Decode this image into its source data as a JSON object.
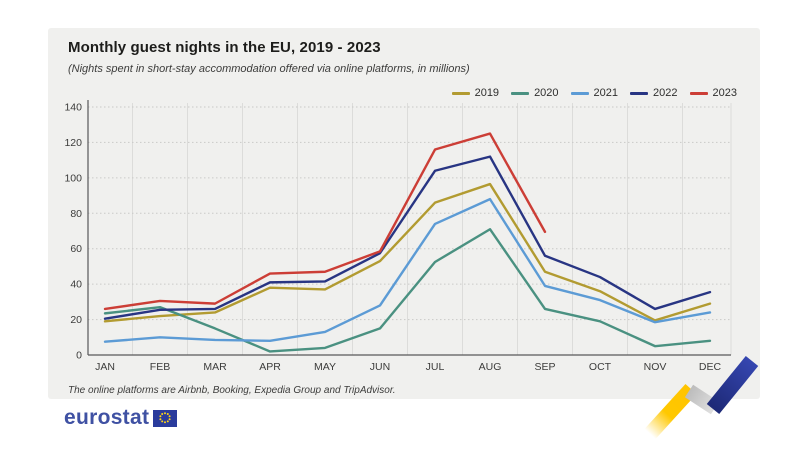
{
  "header": {
    "title": "Monthly guest nights in the EU, 2019 - 2023",
    "subtitle": "(Nights spent in short-stay accommodation offered via online platforms, in millions)"
  },
  "footnote": "The online platforms are Airbnb, Booking, Expedia Group and TripAdvisor.",
  "logo": {
    "text": "eurostat"
  },
  "colors": {
    "card_background": "#f0f0ee",
    "axis": "#58585a",
    "grid_horizontal": "#c9c9c7",
    "grid_vertical": "#dcdcda",
    "tick_text": "#3c3c3b",
    "logo_blue": "#3f51a3",
    "flag_blue": "#2a3b9c",
    "flag_star_yellow": "#ffd617",
    "deco_yellow": "#ffc800",
    "deco_gray": "#c6c6c6",
    "deco_blue_dark": "#1e2a78",
    "deco_blue_light": "#3546b0"
  },
  "chart_data": {
    "type": "line",
    "title": "Monthly guest nights in the EU, 2019 - 2023",
    "subtitle": "(Nights spent in short-stay accommodation offered via online platforms, in millions)",
    "categories": [
      "JAN",
      "FEB",
      "MAR",
      "APR",
      "MAY",
      "JUN",
      "JUL",
      "AUG",
      "SEP",
      "OCT",
      "NOV",
      "DEC"
    ],
    "series": [
      {
        "name": "2019",
        "color": "#b29b31",
        "values": [
          19,
          22,
          24,
          38,
          37,
          53,
          86,
          96.5,
          47,
          36,
          19.5,
          29
        ]
      },
      {
        "name": "2020",
        "color": "#4a9181",
        "values": [
          23.5,
          27,
          15,
          2,
          4,
          15,
          52.5,
          71,
          26,
          19,
          5,
          8
        ]
      },
      {
        "name": "2021",
        "color": "#5c9bd5",
        "values": [
          7.5,
          10,
          8.5,
          8,
          13,
          28,
          74,
          88,
          39,
          31,
          18.5,
          24
        ]
      },
      {
        "name": "2022",
        "color": "#283583",
        "values": [
          20.5,
          25.5,
          26,
          41,
          41.5,
          57.5,
          104,
          112,
          56,
          44,
          26,
          35.5
        ]
      },
      {
        "name": "2023",
        "color": "#cc3e36",
        "values": [
          26,
          30.5,
          29,
          46,
          47,
          58.5,
          116,
          125,
          69.5,
          null,
          null,
          null
        ]
      }
    ],
    "xlabel": "",
    "ylabel": "",
    "ylim": [
      0,
      140
    ],
    "ytick_step": 20,
    "grid": "horizontal-dotted",
    "legend_position": "top-right"
  }
}
